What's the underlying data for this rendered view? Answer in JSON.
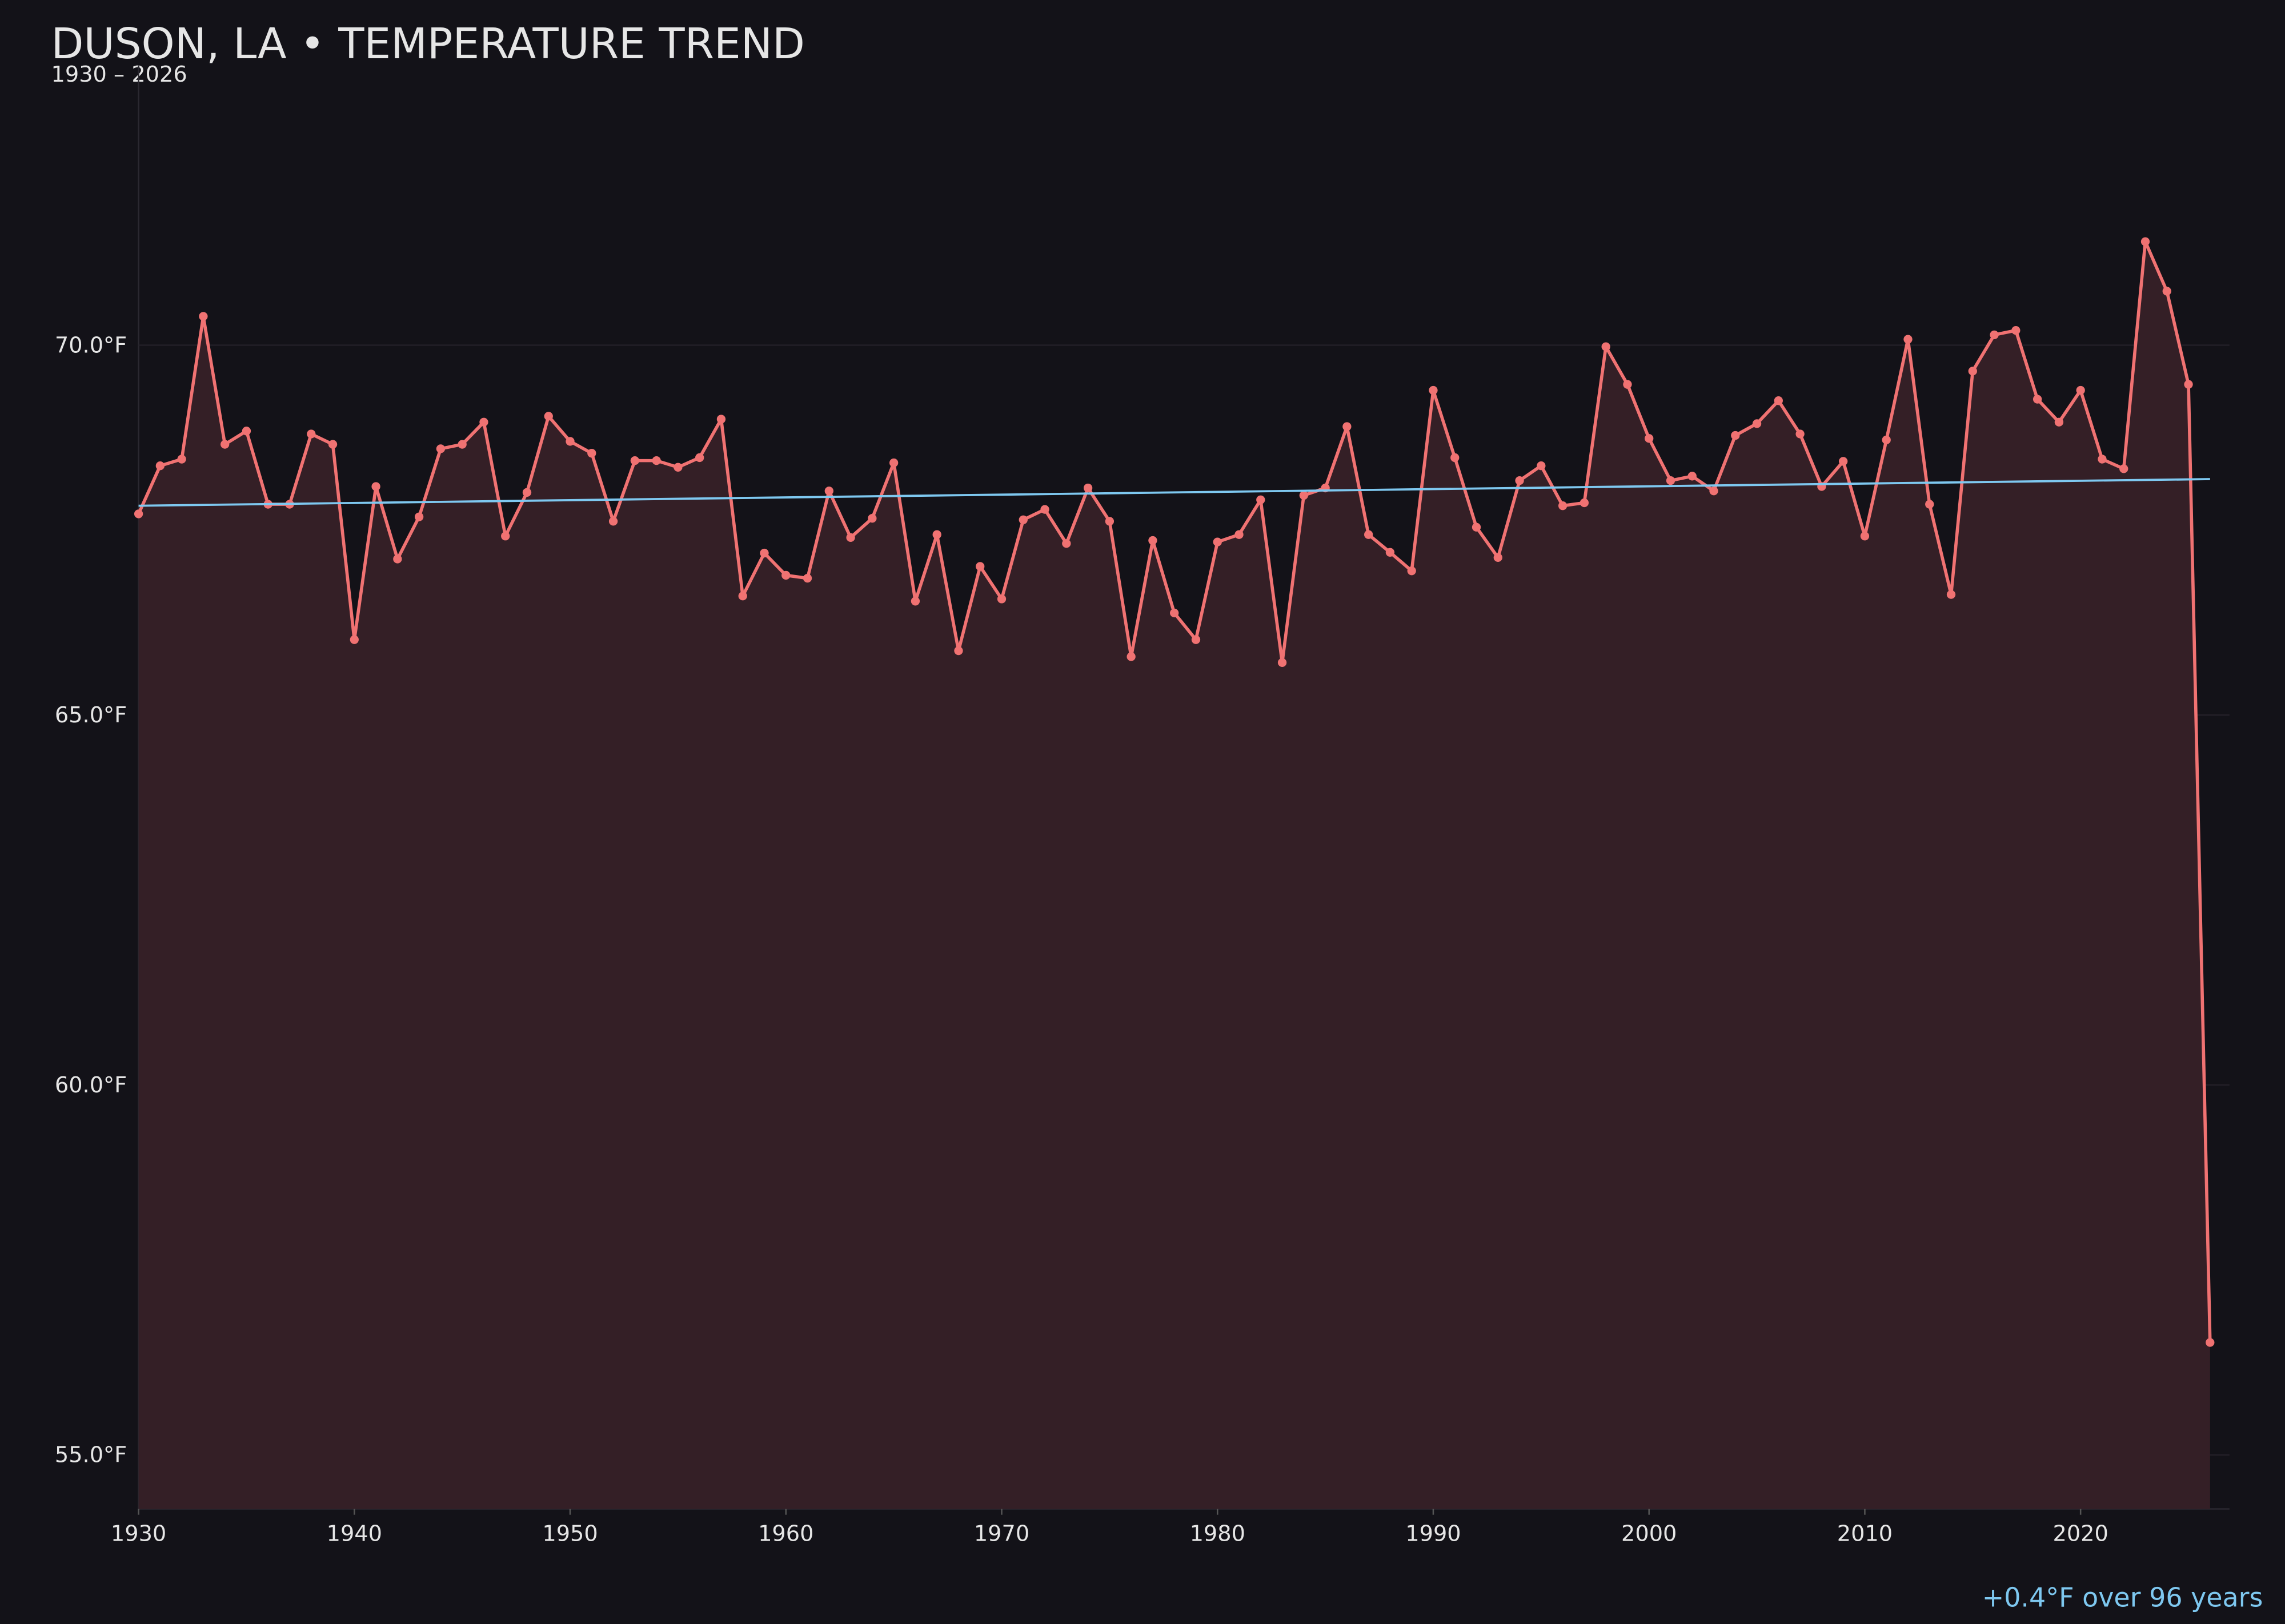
{
  "chart_data": {
    "type": "line",
    "title": "DUSON, LA • TEMPERATURE TREND",
    "subtitle": "1930 – 2026",
    "annotation": "+0.4°F over 96 years",
    "x": [
      1930,
      1931,
      1932,
      1933,
      1934,
      1935,
      1936,
      1937,
      1938,
      1939,
      1940,
      1941,
      1942,
      1943,
      1944,
      1945,
      1946,
      1947,
      1948,
      1949,
      1950,
      1951,
      1952,
      1953,
      1954,
      1955,
      1956,
      1957,
      1958,
      1959,
      1960,
      1961,
      1962,
      1963,
      1964,
      1965,
      1966,
      1967,
      1968,
      1969,
      1970,
      1971,
      1972,
      1973,
      1974,
      1975,
      1976,
      1977,
      1978,
      1979,
      1980,
      1981,
      1982,
      1983,
      1984,
      1985,
      1986,
      1987,
      1988,
      1989,
      1990,
      1991,
      1992,
      1993,
      1994,
      1995,
      1996,
      1997,
      1998,
      1999,
      2000,
      2001,
      2002,
      2003,
      2004,
      2005,
      2006,
      2007,
      2008,
      2009,
      2010,
      2011,
      2012,
      2013,
      2014,
      2015,
      2016,
      2017,
      2018,
      2019,
      2020,
      2021,
      2022,
      2023,
      2024,
      2025,
      2026
    ],
    "series": [
      {
        "color": "#f07272",
        "fill": "#341f26",
        "values": [
          67.72,
          68.37,
          68.46,
          70.39,
          68.66,
          68.84,
          67.85,
          67.85,
          68.8,
          68.66,
          66.02,
          68.09,
          67.11,
          67.68,
          68.6,
          68.66,
          68.96,
          67.42,
          68.01,
          69.04,
          68.7,
          68.54,
          67.62,
          68.44,
          68.44,
          68.35,
          68.48,
          69.0,
          66.61,
          67.19,
          66.89,
          66.85,
          68.03,
          67.4,
          67.66,
          68.41,
          66.54,
          67.44,
          65.87,
          67.01,
          66.57,
          67.64,
          67.78,
          67.32,
          68.07,
          67.62,
          65.79,
          67.36,
          66.38,
          66.02,
          67.34,
          67.44,
          67.91,
          65.71,
          67.97,
          68.07,
          68.9,
          67.44,
          67.2,
          66.95,
          69.39,
          68.48,
          67.54,
          67.13,
          68.17,
          68.37,
          67.83,
          67.87,
          69.98,
          69.47,
          68.74,
          68.17,
          68.23,
          68.03,
          68.78,
          68.94,
          69.25,
          68.8,
          68.09,
          68.43,
          67.42,
          68.72,
          70.08,
          67.85,
          66.63,
          69.65,
          70.14,
          70.2,
          69.27,
          68.96,
          69.39,
          68.46,
          68.33,
          71.4,
          70.73,
          69.47,
          56.52
        ]
      }
    ],
    "trend": {
      "color": "#7ec8f0",
      "x": [
        1930,
        2026
      ],
      "values": [
        67.83,
        68.19
      ]
    },
    "xlim": [
      1930,
      2026.9
    ],
    "ylim": [
      54.27,
      73.78
    ],
    "xticks": [
      1930,
      1940,
      1950,
      1960,
      1970,
      1980,
      1990,
      2000,
      2010,
      2020
    ],
    "yticks": [
      {
        "value": 55,
        "label": "55.0°F"
      },
      {
        "value": 60,
        "label": "60.0°F"
      },
      {
        "value": 65,
        "label": "65.0°F"
      },
      {
        "value": 70,
        "label": "70.0°F"
      }
    ],
    "grid": true
  }
}
